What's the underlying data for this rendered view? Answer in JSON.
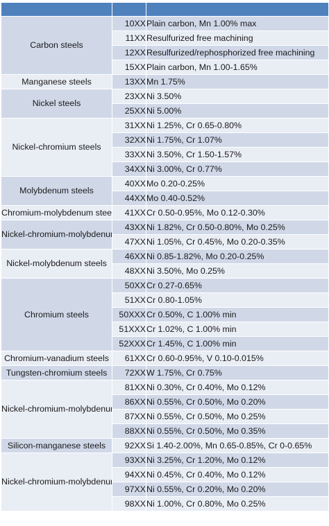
{
  "columns": [
    "",
    "",
    ""
  ],
  "groups": [
    {
      "name": "Carbon steels",
      "rows": [
        {
          "code": "10XX",
          "desc": "Plain carbon, Mn 1.00% max"
        },
        {
          "code": "11XX",
          "desc": "Resulfurized free machining"
        },
        {
          "code": "12XX",
          "desc": "Resulfurized/rephosphorized free machining"
        },
        {
          "code": "15XX",
          "desc": "Plain carbon, Mn 1.00-1.65%"
        }
      ]
    },
    {
      "name": "Manganese steels",
      "rows": [
        {
          "code": "13XX",
          "desc": "Mn 1.75%"
        }
      ]
    },
    {
      "name": "Nickel steels",
      "rows": [
        {
          "code": "23XX",
          "desc": "Ni 3.50%"
        },
        {
          "code": "25XX",
          "desc": "Ni 5.00%"
        }
      ]
    },
    {
      "name": "Nickel-chromium steels",
      "rows": [
        {
          "code": "31XX",
          "desc": "Ni 1.25%, Cr 0.65-0.80%"
        },
        {
          "code": "32XX",
          "desc": "Ni 1.75%, Cr 1.07%"
        },
        {
          "code": "33XX",
          "desc": "Ni 3.50%, Cr 1.50-1.57%"
        },
        {
          "code": "34XX",
          "desc": "Ni 3.00%, Cr 0.77%"
        }
      ]
    },
    {
      "name": "Molybdenum steels",
      "rows": [
        {
          "code": "40XX",
          "desc": "Mo 0.20-0.25%"
        },
        {
          "code": "44XX",
          "desc": "Mo 0.40-0.52%"
        }
      ]
    },
    {
      "name": "Chromium-molybdenum steels",
      "rows": [
        {
          "code": "41XX",
          "desc": "Cr 0.50-0.95%, Mo 0.12-0.30%"
        }
      ]
    },
    {
      "name": "Nickel-chromium-molybdenum steels",
      "rows": [
        {
          "code": "43XX",
          "desc": "Ni 1.82%, Cr 0.50-0.80%, Mo 0.25%"
        },
        {
          "code": "47XX",
          "desc": "Ni 1.05%, Cr 0.45%, Mo 0.20-0.35%"
        }
      ]
    },
    {
      "name": "Nickel-molybdenum steels",
      "rows": [
        {
          "code": "46XX",
          "desc": "Ni 0.85-1.82%, Mo 0.20-0.25%"
        },
        {
          "code": "48XX",
          "desc": "Ni 3.50%, Mo 0.25%"
        }
      ]
    },
    {
      "name": "Chromium steels",
      "rows": [
        {
          "code": "50XX",
          "desc": "Cr 0.27-0.65%"
        },
        {
          "code": "51XX",
          "desc": "Cr 0.80-1.05%"
        },
        {
          "code": "50XXX",
          "desc": "Cr 0.50%, C 1.00% min"
        },
        {
          "code": "51XXX",
          "desc": "Cr 1.02%, C 1.00% min"
        },
        {
          "code": "52XXX",
          "desc": "Cr 1.45%, C 1.00% min"
        }
      ]
    },
    {
      "name": "Chromium-vanadium steels",
      "rows": [
        {
          "code": "61XX",
          "desc": "Cr 0.60-0.95%, V 0.10-0.015%"
        }
      ]
    },
    {
      "name": "Tungsten-chromium steels",
      "rows": [
        {
          "code": "72XX",
          "desc": "W 1.75%, Cr 0.75%"
        }
      ]
    },
    {
      "name": "Nickel-chromium-molybdenum steels",
      "rows": [
        {
          "code": "81XX",
          "desc": "Ni 0.30%, Cr 0.40%, Mo 0.12%"
        },
        {
          "code": "86XX",
          "desc": "Ni 0.55%, Cr 0.50%, Mo 0.20%"
        },
        {
          "code": "87XX",
          "desc": "Ni 0.55%, Cr 0.50%, Mo 0.25%"
        },
        {
          "code": "88XX",
          "desc": "Ni 0.55%, Cr 0.50%, Mo 0.35%"
        }
      ]
    },
    {
      "name": "Silicon-manganese steels",
      "rows": [
        {
          "code": "92XX",
          "desc": "Si 1.40-2.00%, Mn 0.65-0.85%, Cr 0-0.65%"
        }
      ]
    },
    {
      "name": "Nickel-chromium-molybdenum steels",
      "rows": [
        {
          "code": "93XX",
          "desc": "Ni 3.25%, Cr 1.20%, Mo 0.12%"
        },
        {
          "code": "94XX",
          "desc": "Ni 0.45%, Cr 0.40%, Mo 0.12%"
        },
        {
          "code": "97XX",
          "desc": "Ni 0.55%, Cr 0.20%, Mo 0.20%"
        },
        {
          "code": "98XX",
          "desc": "Ni 1.00%, Cr 0.80%, Mo 0.25%"
        }
      ]
    }
  ],
  "colors": {
    "header": "#4f81bd",
    "row_a": "#d0d8e8",
    "row_b": "#e9edf4"
  }
}
